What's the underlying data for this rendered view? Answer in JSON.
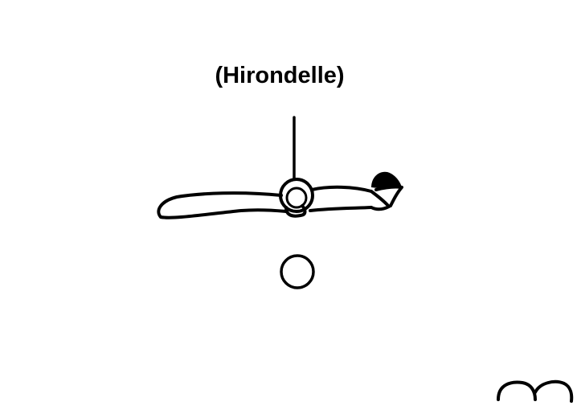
{
  "figure": {
    "title": "(Hirondelle)",
    "ink_color": "#000000",
    "background_color": "#ffffff",
    "icons": [
      "rope-icon",
      "gymnast-figure-icon",
      "ring-icon",
      "circle-symbol-icon",
      "corner-symbol-icon"
    ]
  }
}
